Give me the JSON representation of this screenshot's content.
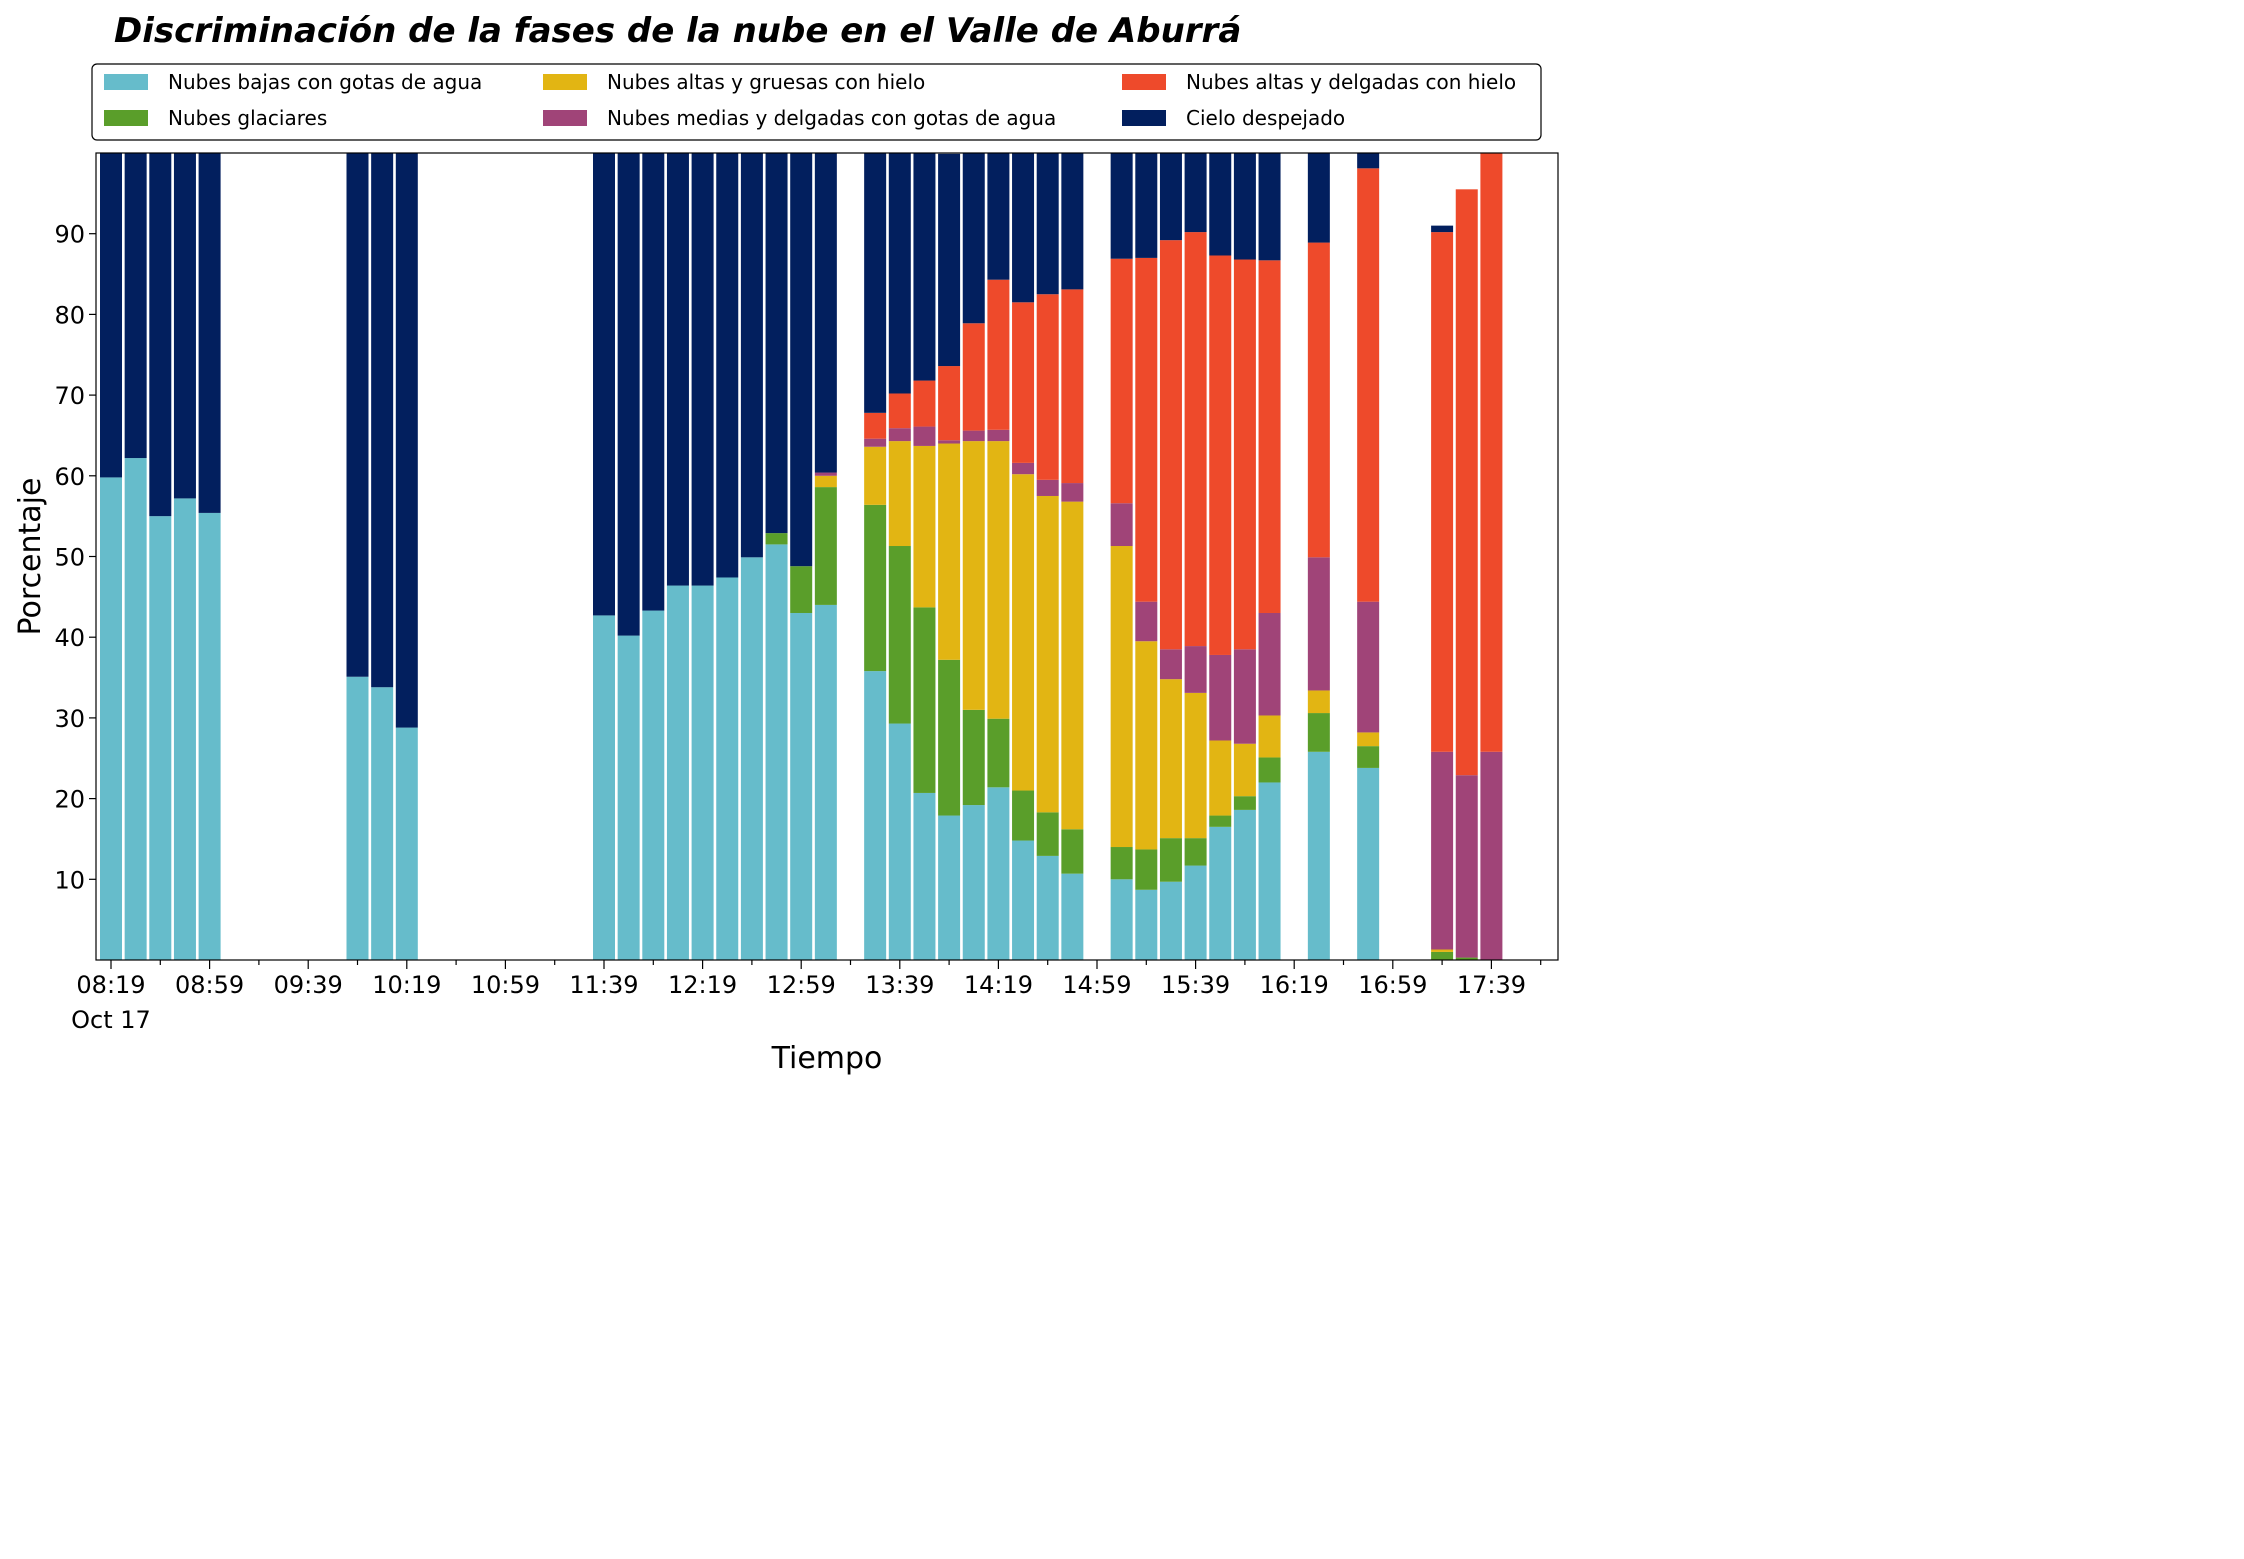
{
  "chart_data": {
    "type": "bar",
    "stacked": true,
    "title": "Discriminación de la fases de la nube en el Valle de Aburrá",
    "xlabel": "Tiempo",
    "ylabel": "Porcentaje",
    "ylim": [
      0,
      100
    ],
    "yticks": [
      10,
      20,
      30,
      40,
      50,
      60,
      70,
      80,
      90
    ],
    "legend_position": "top",
    "x_slots": 58,
    "x_tick_labels": [
      {
        "slot": 0,
        "label": "08:19",
        "sub": "Oct 17"
      },
      {
        "slot": 4,
        "label": "08:59"
      },
      {
        "slot": 8,
        "label": "09:39"
      },
      {
        "slot": 12,
        "label": "10:19"
      },
      {
        "slot": 16,
        "label": "10:59"
      },
      {
        "slot": 20,
        "label": "11:39"
      },
      {
        "slot": 24,
        "label": "12:19"
      },
      {
        "slot": 28,
        "label": "12:59"
      },
      {
        "slot": 32,
        "label": "13:39"
      },
      {
        "slot": 36,
        "label": "14:19"
      },
      {
        "slot": 40,
        "label": "14:59"
      },
      {
        "slot": 44,
        "label": "15:39"
      },
      {
        "slot": 48,
        "label": "16:19"
      },
      {
        "slot": 52,
        "label": "16:59"
      },
      {
        "slot": 56,
        "label": "17:39"
      }
    ],
    "slots": [
      0,
      1,
      2,
      3,
      4,
      10,
      11,
      12,
      20,
      21,
      22,
      23,
      24,
      25,
      26,
      27,
      28,
      29,
      31,
      32,
      33,
      34,
      35,
      36,
      37,
      38,
      39,
      41,
      42,
      43,
      44,
      45,
      46,
      47,
      49,
      51,
      54,
      55,
      56
    ],
    "series": [
      {
        "name": "Nubes bajas con gotas de agua",
        "color": "#66bccb",
        "values": [
          59.8,
          62.2,
          55.0,
          57.2,
          55.4,
          35.1,
          33.8,
          28.8,
          42.7,
          40.2,
          43.3,
          46.4,
          46.4,
          47.4,
          49.9,
          51.5,
          43.0,
          44.0,
          35.8,
          29.3,
          20.7,
          17.9,
          19.2,
          21.4,
          14.8,
          12.9,
          10.7,
          10.0,
          8.7,
          9.7,
          11.7,
          16.5,
          18.6,
          22.0,
          25.8,
          23.8,
          0,
          0,
          0
        ]
      },
      {
        "name": "Nubes glaciares",
        "color": "#5a9e2a",
        "values": [
          0,
          0,
          0,
          0,
          0,
          0,
          0,
          0,
          0,
          0,
          0,
          0,
          0,
          0,
          0,
          1.4,
          5.8,
          14.6,
          20.6,
          22.0,
          23.0,
          19.3,
          11.8,
          8.5,
          6.2,
          5.4,
          5.5,
          4.0,
          5.0,
          5.4,
          3.4,
          1.4,
          1.7,
          3.1,
          4.8,
          2.7,
          1.0,
          0.3,
          0
        ]
      },
      {
        "name": "Nubes altas y gruesas con hielo",
        "color": "#e2b513",
        "values": [
          0,
          0,
          0,
          0,
          0,
          0,
          0,
          0,
          0,
          0,
          0,
          0,
          0,
          0,
          0,
          0,
          0,
          1.4,
          7.2,
          13.0,
          20.0,
          26.8,
          33.3,
          34.4,
          39.2,
          39.2,
          40.6,
          37.3,
          25.8,
          19.7,
          18.0,
          9.3,
          6.5,
          5.2,
          2.8,
          1.7,
          0.3,
          0,
          0
        ]
      },
      {
        "name": "Nubes medias y delgadas con gotas de agua",
        "color": "#a04478",
        "values": [
          0,
          0,
          0,
          0,
          0,
          0,
          0,
          0,
          0,
          0,
          0,
          0,
          0,
          0,
          0,
          0,
          0,
          0.4,
          1.0,
          1.6,
          2.4,
          0.4,
          1.3,
          1.4,
          1.4,
          2.0,
          2.3,
          5.3,
          4.9,
          3.7,
          5.8,
          10.6,
          11.7,
          12.7,
          16.5,
          16.2,
          24.5,
          22.6,
          25.8
        ]
      },
      {
        "name": "Nubes altas y delgadas con hielo",
        "color": "#ee4a2b",
        "values": [
          0,
          0,
          0,
          0,
          0,
          0,
          0,
          0,
          0,
          0,
          0,
          0,
          0,
          0,
          0,
          0,
          0,
          0,
          3.2,
          4.3,
          5.7,
          9.2,
          13.3,
          18.6,
          19.9,
          23.0,
          24.0,
          30.3,
          42.6,
          50.7,
          51.3,
          49.5,
          48.3,
          43.7,
          39.0,
          53.7,
          64.4,
          72.6,
          74.2
        ]
      },
      {
        "name": "Cielo despejado",
        "color": "#021f5e",
        "values": [
          40.2,
          37.8,
          45.0,
          42.8,
          44.6,
          64.9,
          66.2,
          71.2,
          57.3,
          59.8,
          56.7,
          53.6,
          53.6,
          52.6,
          50.1,
          47.1,
          51.2,
          40.0,
          32.2,
          29.8,
          28.2,
          26.3,
          22.4,
          17.0,
          18.5,
          17.5,
          16.9,
          13.4,
          13.0,
          10.8,
          9.8,
          12.7,
          13.2,
          13.3,
          11.1,
          1.9,
          0.8,
          0,
          0
        ]
      }
    ]
  }
}
